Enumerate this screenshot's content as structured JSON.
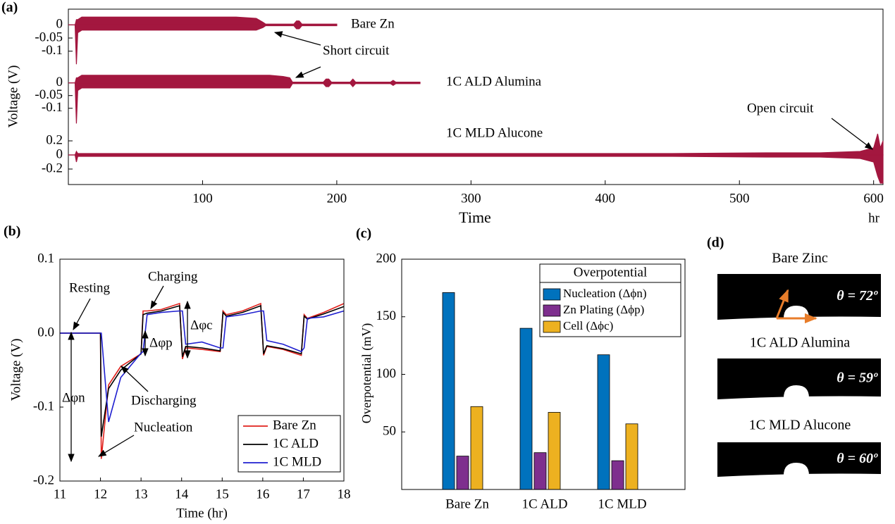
{
  "chart_data": [
    {
      "type": "band",
      "panel_label": "(a)",
      "ylabel": "Voltage (V)",
      "xlabel": "Time",
      "xunit": "hr",
      "color": "#a3173f",
      "xlim": [
        0,
        607
      ],
      "xticks": [
        100,
        200,
        300,
        400,
        500,
        600
      ],
      "subplots": [
        {
          "name": "Bare Zn",
          "ylim": [
            -0.16,
            0.06
          ],
          "yticks": [
            0,
            -0.05,
            -0.1
          ],
          "x": [
            0,
            5,
            6,
            7,
            10,
            125,
            140,
            145,
            147,
            168,
            170,
            172,
            174,
            200
          ],
          "high": [
            0,
            0,
            0.02,
            0.02,
            0.03,
            0.03,
            0.025,
            0.01,
            0.003,
            0.003,
            0.015,
            0.015,
            0.003,
            0.003
          ],
          "low": [
            0,
            0,
            -0.15,
            -0.03,
            -0.02,
            -0.02,
            -0.02,
            -0.01,
            -0.003,
            -0.003,
            -0.015,
            -0.015,
            -0.003,
            -0.003
          ]
        },
        {
          "name": "1C ALD Alumina",
          "ylim": [
            -0.17,
            0.06
          ],
          "yticks": [
            0,
            -0.05,
            -0.1
          ],
          "x": [
            0,
            5,
            6,
            7,
            10,
            150,
            160,
            165,
            167,
            190,
            192,
            194,
            196,
            200,
            210,
            212,
            214,
            240,
            242,
            244,
            262
          ],
          "high": [
            0,
            0,
            0.02,
            0.02,
            0.03,
            0.03,
            0.025,
            0.02,
            0.003,
            0.003,
            0.015,
            0.015,
            0.003,
            0.003,
            0.003,
            0.015,
            0.003,
            0.003,
            0.01,
            0.003,
            0.003
          ],
          "low": [
            0,
            0,
            -0.16,
            -0.03,
            -0.02,
            -0.02,
            -0.02,
            -0.02,
            -0.003,
            -0.003,
            -0.015,
            -0.015,
            -0.003,
            -0.003,
            -0.003,
            -0.015,
            -0.003,
            -0.003,
            -0.01,
            -0.003,
            -0.003
          ]
        },
        {
          "name": "1C MLD Alucone",
          "ylim": [
            -0.4,
            0.4
          ],
          "yticks": [
            0.2,
            0,
            -0.2
          ],
          "x": [
            0,
            5,
            6,
            7,
            10,
            300,
            450,
            520,
            560,
            590,
            600,
            603,
            605,
            607
          ],
          "high": [
            0,
            0,
            0.05,
            0.02,
            0.02,
            0.02,
            0.02,
            0.03,
            0.03,
            0.05,
            0.1,
            0.3,
            0.1,
            0.2
          ],
          "low": [
            0,
            0,
            -0.1,
            -0.02,
            -0.02,
            -0.02,
            -0.02,
            -0.03,
            -0.03,
            -0.05,
            -0.1,
            -0.3,
            -0.4,
            -0.4
          ]
        }
      ],
      "annotations": [
        "Short circuit",
        "Open circuit"
      ]
    },
    {
      "type": "line",
      "panel_label": "(b)",
      "xlabel": "Time (hr)",
      "ylabel": "Voltage (V)",
      "xlim": [
        11,
        18
      ],
      "xticks": [
        11,
        12,
        13,
        14,
        15,
        16,
        17,
        18
      ],
      "ylim": [
        -0.2,
        0.1
      ],
      "yticks": [
        -0.2,
        -0.1,
        {
          "value": 0,
          "label": "0.0"
        },
        0.1
      ],
      "x": [
        11,
        12,
        12.02,
        12.2,
        12.5,
        13,
        13.05,
        13.15,
        13.5,
        13.95,
        14.02,
        14.1,
        14.5,
        14.95,
        15.02,
        15.1,
        15.5,
        15.95,
        16.02,
        16.1,
        16.5,
        16.95,
        17.02,
        17.1,
        17.5,
        18
      ],
      "series": [
        {
          "name": "Bare Zn",
          "color": "#e0201b",
          "values": [
            0,
            0,
            -0.17,
            -0.07,
            -0.045,
            -0.028,
            0.03,
            0.03,
            0.032,
            0.04,
            -0.035,
            -0.02,
            -0.022,
            -0.025,
            0.03,
            0.025,
            0.03,
            0.04,
            -0.03,
            -0.018,
            -0.022,
            -0.03,
            0.025,
            0.02,
            0.028,
            0.04
          ]
        },
        {
          "name": "1C ALD",
          "color": "#000000",
          "values": [
            0,
            0,
            -0.14,
            -0.075,
            -0.05,
            -0.028,
            0.025,
            0.027,
            0.03,
            0.037,
            -0.032,
            -0.018,
            -0.02,
            -0.024,
            0.028,
            0.023,
            0.028,
            0.037,
            -0.028,
            -0.017,
            -0.021,
            -0.028,
            0.023,
            0.019,
            0.026,
            0.036
          ]
        },
        {
          "name": "1C MLD",
          "color": "#1f1fd0",
          "values": [
            0,
            0,
            0,
            -0.12,
            -0.06,
            -0.027,
            -0.025,
            0.025,
            0.028,
            0.03,
            0.03,
            -0.015,
            -0.012,
            -0.02,
            -0.02,
            0.022,
            0.025,
            0.03,
            0.03,
            -0.01,
            -0.015,
            -0.025,
            -0.02,
            0.02,
            0.022,
            0.03
          ]
        }
      ],
      "legend": "lower right",
      "annotations": [
        "Resting",
        "Charging",
        "Discharging",
        "Nucleation",
        "Δφc",
        "Δφp",
        "Δφn"
      ]
    },
    {
      "type": "bar",
      "panel_label": "(c)",
      "ylabel": "Overpotential (mV)",
      "categories": [
        "Bare Zn",
        "1C ALD",
        "1C MLD"
      ],
      "ylim": [
        0,
        200
      ],
      "yticks": [
        50,
        100,
        150,
        200
      ],
      "legend_title": "Overpotential",
      "legend": "upper right",
      "series": [
        {
          "name": "Nucleation (Δϕn)",
          "color": "#0072bd",
          "values": [
            171,
            140,
            117
          ]
        },
        {
          "name": "Zn Plating (Δϕp)",
          "color": "#7e2f8e",
          "values": [
            29,
            32,
            25
          ]
        },
        {
          "name": "Cell (Δϕc)",
          "color": "#edb120",
          "values": [
            72,
            67,
            57
          ]
        }
      ]
    }
  ],
  "panel_d": {
    "panel_label": "(d)",
    "images": [
      {
        "title": "Bare Zinc",
        "angle_label": "θ = 72º"
      },
      {
        "title": "1C ALD Alumina",
        "angle_label": "θ = 59º"
      },
      {
        "title": "1C MLD Alucone",
        "angle_label": "θ = 60º"
      }
    ]
  }
}
